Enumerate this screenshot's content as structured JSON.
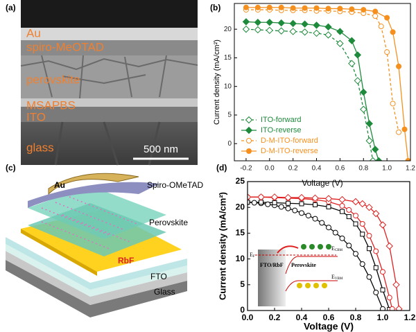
{
  "panel_a": {
    "label": "(a)",
    "layers": [
      "Au",
      "spiro-MeOTAD",
      "perovskite",
      "MSAPBS",
      "ITO",
      "glass"
    ],
    "scale_bar": "500 nm"
  },
  "panel_c": {
    "label": "(c)",
    "layers": [
      "Au",
      "Spiro-OMeTAD",
      "Perovskite",
      "RbF",
      "FTO",
      "Glass"
    ]
  },
  "chart_data": [
    {
      "type": "line",
      "panel_label": "(b)",
      "x_label": "Voltage (V)",
      "y_label": "Current density (mA/cm²)",
      "xlim": [
        -0.3,
        1.2
      ],
      "ylim": [
        -3,
        24.5
      ],
      "xticks": [
        -0.2,
        {
          "value": 0,
          "label": "0.0"
        },
        0.2,
        0.4,
        0.6,
        0.8,
        {
          "value": 1,
          "label": "1.0"
        },
        1.2
      ],
      "yticks": [
        0,
        5,
        10,
        15,
        20
      ],
      "legend": "lower left",
      "series": [
        {
          "name": "ITO-forward",
          "color": "#1e8a3c",
          "dashed": true,
          "marker": "diamond",
          "filled": false,
          "x": [
            -0.2,
            -0.1,
            0,
            0.1,
            0.2,
            0.3,
            0.4,
            0.5,
            0.6,
            0.7,
            0.75,
            0.8,
            0.85,
            0.88
          ],
          "values": [
            20.0,
            19.9,
            19.8,
            19.7,
            19.6,
            19.5,
            19.3,
            19.0,
            17.5,
            14.0,
            11.0,
            6.0,
            0.5,
            -3.0
          ]
        },
        {
          "name": "ITO-reverse",
          "color": "#1e8a3c",
          "dashed": false,
          "marker": "diamond",
          "filled": true,
          "x": [
            -0.2,
            -0.1,
            0,
            0.1,
            0.2,
            0.3,
            0.4,
            0.5,
            0.6,
            0.7,
            0.75,
            0.8,
            0.85,
            0.9,
            0.93
          ],
          "values": [
            21.3,
            21.2,
            21.2,
            21.1,
            21.0,
            20.9,
            20.7,
            20.4,
            19.6,
            18.0,
            15.5,
            9.0,
            3.5,
            -1.0,
            -3.0
          ]
        },
        {
          "name": "D-M-ITO-forward",
          "color": "#f5901e",
          "dashed": true,
          "marker": "circle",
          "filled": false,
          "x": [
            -0.2,
            -0.1,
            0,
            0.1,
            0.2,
            0.3,
            0.4,
            0.5,
            0.6,
            0.7,
            0.8,
            0.9,
            0.95,
            1.0,
            1.05,
            1.1
          ],
          "values": [
            23.4,
            23.4,
            23.4,
            23.3,
            23.3,
            23.3,
            23.2,
            23.2,
            23.1,
            23.0,
            22.8,
            22.3,
            20.5,
            16.0,
            7.0,
            2.0
          ]
        },
        {
          "name": "D-M-ITO-reverse",
          "color": "#f5901e",
          "dashed": false,
          "marker": "circle",
          "filled": true,
          "x": [
            -0.2,
            -0.1,
            0,
            0.1,
            0.2,
            0.3,
            0.4,
            0.5,
            0.6,
            0.7,
            0.8,
            0.9,
            1.0,
            1.05,
            1.1,
            1.15,
            1.18
          ],
          "values": [
            23.8,
            23.8,
            23.8,
            23.8,
            23.7,
            23.7,
            23.7,
            23.6,
            23.6,
            23.5,
            23.4,
            23.1,
            22.0,
            19.5,
            13.5,
            2.5,
            -3.0
          ]
        }
      ]
    },
    {
      "type": "line",
      "panel_label": "(d)",
      "x_label": "Voltage (V)",
      "y_label": "Current density (mA/cm²)",
      "xlim": [
        0,
        1.2
      ],
      "ylim": [
        0,
        25
      ],
      "xticks": [
        {
          "value": 0,
          "label": "0.0"
        },
        0.2,
        0.4,
        0.6,
        0.8,
        {
          "value": 1,
          "label": "1.0"
        },
        1.2
      ],
      "yticks": [
        0,
        5,
        10,
        15,
        20,
        25
      ],
      "inset": {
        "ef": {
          "base": "E",
          "sub": "F"
        },
        "left": "FTO/RbF",
        "right": "Perovskite",
        "cbm": {
          "base": "E",
          "sub": "CBM"
        },
        "vbm": {
          "base": "E",
          "sub": "VBM"
        }
      },
      "series": [
        {
          "color": "#000000",
          "dashed": false,
          "marker": "circle",
          "filled": false,
          "x": [
            0,
            0.05,
            0.1,
            0.15,
            0.2,
            0.25,
            0.3,
            0.35,
            0.4,
            0.45,
            0.5,
            0.55,
            0.6,
            0.65,
            0.7,
            0.75,
            0.8,
            0.85,
            0.9,
            0.95,
            1.0
          ],
          "values": [
            21.0,
            20.9,
            20.8,
            20.6,
            20.4,
            20.1,
            19.8,
            19.4,
            18.9,
            18.4,
            17.8,
            17.0,
            16.1,
            15.1,
            14.0,
            12.6,
            11.0,
            9.0,
            6.5,
            3.5,
            0.3
          ]
        },
        {
          "color": "#000000",
          "dashed": false,
          "marker": "square",
          "filled": false,
          "x": [
            0,
            0.1,
            0.2,
            0.3,
            0.4,
            0.5,
            0.6,
            0.7,
            0.75,
            0.8,
            0.85,
            0.9,
            0.95,
            1.0,
            1.05
          ],
          "values": [
            21.0,
            21.0,
            20.9,
            20.8,
            20.7,
            20.5,
            20.1,
            19.2,
            18.2,
            16.8,
            14.8,
            12.0,
            8.3,
            4.0,
            0.2
          ]
        },
        {
          "color": "#e02020",
          "dashed": false,
          "marker": "circle",
          "filled": false,
          "x": [
            0,
            0.1,
            0.2,
            0.3,
            0.4,
            0.5,
            0.6,
            0.7,
            0.75,
            0.8,
            0.85,
            0.9,
            0.95,
            1.0,
            1.05,
            1.07
          ],
          "values": [
            22.0,
            22.0,
            21.9,
            21.8,
            21.7,
            21.5,
            21.1,
            20.3,
            19.5,
            18.4,
            16.8,
            14.5,
            11.5,
            7.5,
            2.5,
            0.3
          ]
        },
        {
          "color": "#e02020",
          "dashed": false,
          "marker": "diamond",
          "filled": false,
          "x": [
            0,
            0.1,
            0.2,
            0.3,
            0.4,
            0.5,
            0.6,
            0.7,
            0.8,
            0.85,
            0.9,
            0.95,
            1.0,
            1.05,
            1.1,
            1.12
          ],
          "values": [
            22.0,
            22.0,
            22.0,
            21.9,
            21.9,
            21.8,
            21.7,
            21.5,
            21.1,
            20.7,
            20.0,
            18.8,
            16.6,
            12.5,
            5.0,
            0.3
          ]
        }
      ]
    }
  ]
}
